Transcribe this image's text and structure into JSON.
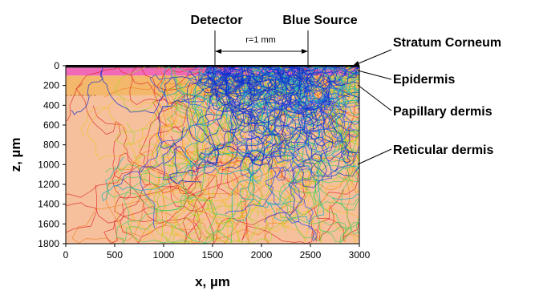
{
  "chart_data": {
    "type": "scatter",
    "xlabel": "x, µm",
    "ylabel": "z, µm",
    "xlim": [
      0,
      3000
    ],
    "ylim": [
      1800,
      0
    ],
    "xticks": [
      "0",
      "500",
      "1000",
      "1500",
      "2000",
      "2500",
      "3000"
    ],
    "yticks": [
      "0",
      "200",
      "400",
      "600",
      "800",
      "1000",
      "1200",
      "1400",
      "1600",
      "1800"
    ],
    "layers": [
      {
        "name": "Stratum Corneum",
        "z_from": 0,
        "z_to": 20,
        "color": "#222222"
      },
      {
        "name": "Epidermis",
        "z_from": 20,
        "z_to": 100,
        "color": "#f06ab8"
      },
      {
        "name": "Papillary dermis",
        "z_from": 100,
        "z_to": 300,
        "color": "#f4b86c"
      },
      {
        "name": "Reticular dermis",
        "z_from": 300,
        "z_to": 1800,
        "color": "#f6c09c"
      }
    ],
    "detector_x": 1550,
    "source_x": 2500,
    "separation_label": "r=1 mm",
    "detector_label": "Detector",
    "source_label": "Blue Source",
    "path_colors": [
      "#1030d0",
      "#2a4ff0",
      "#10b0c0",
      "#3ccf50",
      "#a8d820",
      "#f2c020",
      "#f08020",
      "#e02020"
    ]
  }
}
